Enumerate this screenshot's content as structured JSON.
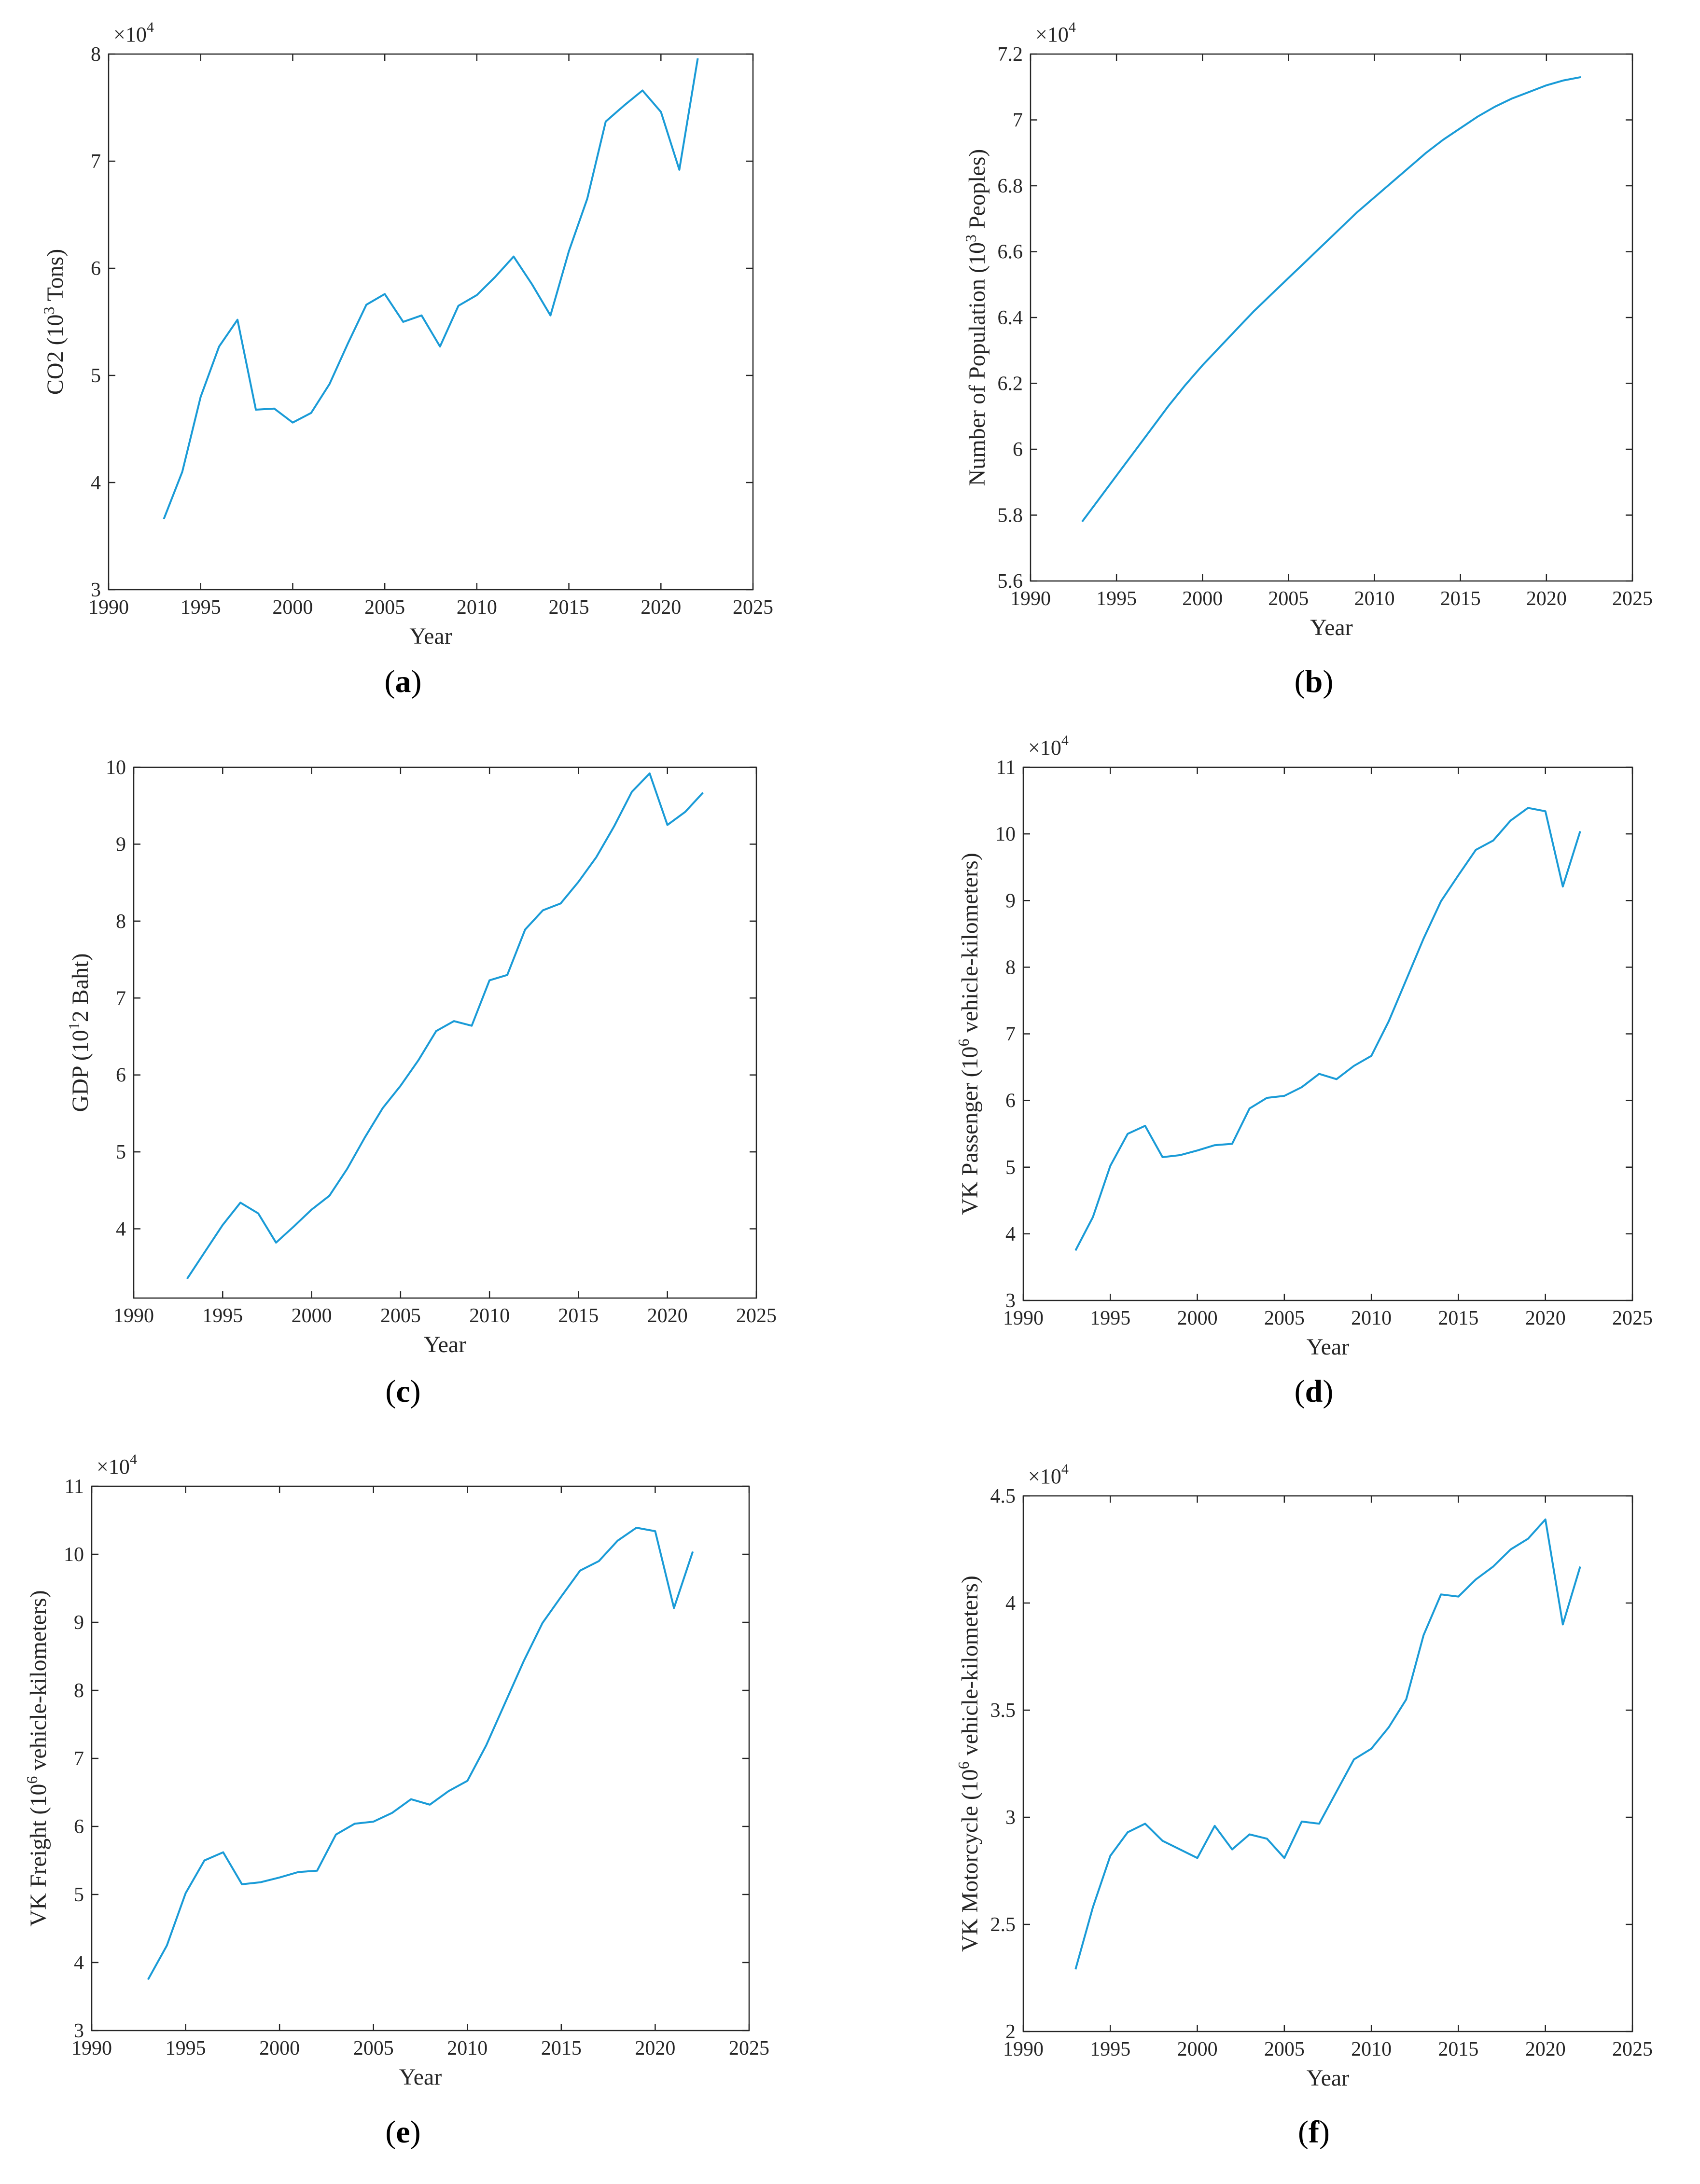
{
  "colors": {
    "line": "#1a9bd7",
    "axis": "#262626",
    "background": "#ffffff"
  },
  "chart_data": [
    {
      "id": "a",
      "type": "line",
      "caption_letter": "a",
      "xlabel": "Year",
      "ylabel": "CO2 (10^3 Tons)",
      "ylabel_parts": [
        {
          "t": "CO2 (10"
        },
        {
          "t": "3",
          "sup": true
        },
        {
          "t": " Tons)"
        }
      ],
      "exponent": "4",
      "exp_prefix": "×10",
      "xlim": [
        1990,
        2025
      ],
      "ylim": [
        3,
        8
      ],
      "xticks": [
        1990,
        1995,
        2000,
        2005,
        2010,
        2015,
        2020,
        2025
      ],
      "xtick_labels": [
        "1990",
        "1995",
        "2000",
        "2005",
        "2010",
        "2015",
        "2020",
        "2025"
      ],
      "yticks": [
        3,
        4,
        5,
        6,
        7,
        8
      ],
      "ytick_labels": [
        "3",
        "4",
        "5",
        "6",
        "7",
        "8"
      ],
      "x": [
        1993,
        1994,
        1995,
        1996,
        1997,
        1998,
        1999,
        2000,
        2001,
        2002,
        2003,
        2004,
        2005,
        2006,
        2007,
        2008,
        2009,
        2010,
        2011,
        2012,
        2013,
        2014,
        2015,
        2016,
        2017,
        2018,
        2019,
        2020,
        2021,
        2022
      ],
      "y": [
        3.66,
        4.1,
        4.8,
        5.27,
        5.52,
        4.68,
        4.69,
        4.56,
        4.65,
        4.92,
        5.3,
        5.66,
        5.76,
        5.5,
        5.56,
        5.27,
        5.65,
        5.75,
        5.92,
        6.11,
        5.85,
        5.56,
        6.16,
        6.65,
        7.37,
        7.52,
        7.66,
        7.46,
        6.92,
        7.96
      ]
    },
    {
      "id": "b",
      "type": "line",
      "caption_letter": "b",
      "xlabel": "Year",
      "ylabel": "Number of Population (10^3 Peoples)",
      "ylabel_parts": [
        {
          "t": "Number of Population (10"
        },
        {
          "t": "3",
          "sup": true
        },
        {
          "t": " Peoples)"
        }
      ],
      "exponent": "4",
      "exp_prefix": "×10",
      "xlim": [
        1990,
        2025
      ],
      "ylim": [
        5.6,
        7.2
      ],
      "xticks": [
        1990,
        1995,
        2000,
        2005,
        2010,
        2015,
        2020,
        2025
      ],
      "xtick_labels": [
        "1990",
        "1995",
        "2000",
        "2005",
        "2010",
        "2015",
        "2020",
        "2025"
      ],
      "yticks": [
        5.6,
        5.8,
        6.0,
        6.2,
        6.4,
        6.6,
        6.8,
        7.0,
        7.2
      ],
      "ytick_labels": [
        "5.6",
        "5.8",
        "6",
        "6.2",
        "6.4",
        "6.6",
        "6.8",
        "7",
        "7.2"
      ],
      "x": [
        1993,
        1994,
        1995,
        1996,
        1997,
        1998,
        1999,
        2000,
        2001,
        2002,
        2003,
        2004,
        2005,
        2006,
        2007,
        2008,
        2009,
        2010,
        2011,
        2012,
        2013,
        2014,
        2015,
        2016,
        2017,
        2018,
        2019,
        2020,
        2021,
        2022
      ],
      "y": [
        5.78,
        5.85,
        5.92,
        5.99,
        6.06,
        6.13,
        6.195,
        6.255,
        6.31,
        6.365,
        6.42,
        6.47,
        6.52,
        6.57,
        6.62,
        6.67,
        6.72,
        6.765,
        6.81,
        6.855,
        6.9,
        6.94,
        6.975,
        7.01,
        7.04,
        7.065,
        7.085,
        7.105,
        7.12,
        7.13
      ]
    },
    {
      "id": "c",
      "type": "line",
      "caption_letter": "c",
      "xlabel": "Year",
      "ylabel": "GDP (10^12 Baht)",
      "ylabel_parts": [
        {
          "t": "GDP (10"
        },
        {
          "t": "1",
          "sup": true
        },
        {
          "t": "2 Baht)"
        }
      ],
      "exponent": "",
      "exp_prefix": "",
      "xlim": [
        1990,
        2025
      ],
      "ylim": [
        3.1,
        10
      ],
      "xticks": [
        1990,
        1995,
        2000,
        2005,
        2010,
        2015,
        2020,
        2025
      ],
      "xtick_labels": [
        "1990",
        "1995",
        "2000",
        "2005",
        "2010",
        "2015",
        "2020",
        "2025"
      ],
      "yticks": [
        4,
        5,
        6,
        7,
        8,
        9,
        10
      ],
      "ytick_labels": [
        "4",
        "5",
        "6",
        "7",
        "8",
        "9",
        "10"
      ],
      "x": [
        1993,
        1994,
        1995,
        1996,
        1997,
        1998,
        1999,
        2000,
        2001,
        2002,
        2003,
        2004,
        2005,
        2006,
        2007,
        2008,
        2009,
        2010,
        2011,
        2012,
        2013,
        2014,
        2015,
        2016,
        2017,
        2018,
        2019,
        2020,
        2021,
        2022
      ],
      "y": [
        3.35,
        3.7,
        4.05,
        4.34,
        4.2,
        3.82,
        4.03,
        4.25,
        4.43,
        4.78,
        5.19,
        5.57,
        5.86,
        6.19,
        6.57,
        6.7,
        6.64,
        7.23,
        7.3,
        7.89,
        8.14,
        8.23,
        8.51,
        8.83,
        9.23,
        9.68,
        9.92,
        9.25,
        9.42,
        9.67
      ]
    },
    {
      "id": "d",
      "type": "line",
      "caption_letter": "d",
      "xlabel": "Year",
      "ylabel": "VK Passenger (10^6 vehicle-kilometers)",
      "ylabel_parts": [
        {
          "t": "VK Passenger (10"
        },
        {
          "t": "6",
          "sup": true
        },
        {
          "t": " vehicle-kilometers)"
        }
      ],
      "exponent": "4",
      "exp_prefix": "×10",
      "xlim": [
        1990,
        2025
      ],
      "ylim": [
        3,
        11
      ],
      "xticks": [
        1990,
        1995,
        2000,
        2005,
        2010,
        2015,
        2020,
        2025
      ],
      "xtick_labels": [
        "1990",
        "1995",
        "2000",
        "2005",
        "2010",
        "2015",
        "2020",
        "2025"
      ],
      "yticks": [
        3,
        4,
        5,
        6,
        7,
        8,
        9,
        10,
        11
      ],
      "ytick_labels": [
        "3",
        "4",
        "5",
        "6",
        "7",
        "8",
        "9",
        "10",
        "11"
      ],
      "x": [
        1993,
        1994,
        1995,
        1996,
        1997,
        1998,
        1999,
        2000,
        2001,
        2002,
        2003,
        2004,
        2005,
        2006,
        2007,
        2008,
        2009,
        2010,
        2011,
        2012,
        2013,
        2014,
        2015,
        2016,
        2017,
        2018,
        2019,
        2020,
        2021,
        2022
      ],
      "y": [
        3.75,
        4.25,
        5.02,
        5.5,
        5.62,
        5.15,
        5.18,
        5.25,
        5.33,
        5.35,
        5.88,
        6.04,
        6.07,
        6.2,
        6.4,
        6.32,
        6.52,
        6.67,
        7.19,
        7.81,
        8.43,
        8.99,
        9.38,
        9.76,
        9.9,
        10.2,
        10.39,
        10.34,
        9.21,
        10.04
      ]
    },
    {
      "id": "e",
      "type": "line",
      "caption_letter": "e",
      "xlabel": "Year",
      "ylabel": "VK Freight (10^6 vehicle-kilometers)",
      "ylabel_parts": [
        {
          "t": "VK Freight (10"
        },
        {
          "t": "6",
          "sup": true
        },
        {
          "t": " vehicle-kilometers)"
        }
      ],
      "exponent": "4",
      "exp_prefix": "×10",
      "xlim": [
        1990,
        2025
      ],
      "ylim": [
        3,
        11
      ],
      "xticks": [
        1990,
        1995,
        2000,
        2005,
        2010,
        2015,
        2020,
        2025
      ],
      "xtick_labels": [
        "1990",
        "1995",
        "2000",
        "2005",
        "2010",
        "2015",
        "2020",
        "2025"
      ],
      "yticks": [
        3,
        4,
        5,
        6,
        7,
        8,
        9,
        10,
        11
      ],
      "ytick_labels": [
        "3",
        "4",
        "5",
        "6",
        "7",
        "8",
        "9",
        "10",
        "11"
      ],
      "x": [
        1993,
        1994,
        1995,
        1996,
        1997,
        1998,
        1999,
        2000,
        2001,
        2002,
        2003,
        2004,
        2005,
        2006,
        2007,
        2008,
        2009,
        2010,
        2011,
        2012,
        2013,
        2014,
        2015,
        2016,
        2017,
        2018,
        2019,
        2020,
        2021,
        2022
      ],
      "y": [
        3.75,
        4.25,
        5.02,
        5.5,
        5.62,
        5.15,
        5.18,
        5.25,
        5.33,
        5.35,
        5.88,
        6.04,
        6.07,
        6.2,
        6.4,
        6.32,
        6.52,
        6.67,
        7.19,
        7.81,
        8.43,
        8.99,
        9.38,
        9.76,
        9.9,
        10.2,
        10.39,
        10.34,
        9.21,
        10.04
      ]
    },
    {
      "id": "f",
      "type": "line",
      "caption_letter": "f",
      "xlabel": "Year",
      "ylabel": "VK Motorcycle (10^6 vehicle-kilometers)",
      "ylabel_parts": [
        {
          "t": "VK Motorcycle (10"
        },
        {
          "t": "6",
          "sup": true
        },
        {
          "t": " vehicle-kilometers)"
        }
      ],
      "exponent": "4",
      "exp_prefix": "×10",
      "xlim": [
        1990,
        2025
      ],
      "ylim": [
        2,
        4.5
      ],
      "xticks": [
        1990,
        1995,
        2000,
        2005,
        2010,
        2015,
        2020,
        2025
      ],
      "xtick_labels": [
        "1990",
        "1995",
        "2000",
        "2005",
        "2010",
        "2015",
        "2020",
        "2025"
      ],
      "yticks": [
        2,
        2.5,
        3,
        3.5,
        4,
        4.5
      ],
      "ytick_labels": [
        "2",
        "2.5",
        "3",
        "3.5",
        "4",
        "4.5"
      ],
      "x": [
        1993,
        1994,
        1995,
        1996,
        1997,
        1998,
        1999,
        2000,
        2001,
        2002,
        2003,
        2004,
        2005,
        2006,
        2007,
        2008,
        2009,
        2010,
        2011,
        2012,
        2013,
        2014,
        2015,
        2016,
        2017,
        2018,
        2019,
        2020,
        2021,
        2022
      ],
      "y": [
        2.29,
        2.58,
        2.82,
        2.93,
        2.97,
        2.89,
        2.85,
        2.81,
        2.96,
        2.85,
        2.92,
        2.9,
        2.81,
        2.98,
        2.97,
        3.12,
        3.27,
        3.32,
        3.42,
        3.55,
        3.85,
        4.04,
        4.03,
        4.11,
        4.17,
        4.25,
        4.3,
        4.39,
        3.9,
        4.17
      ]
    }
  ]
}
